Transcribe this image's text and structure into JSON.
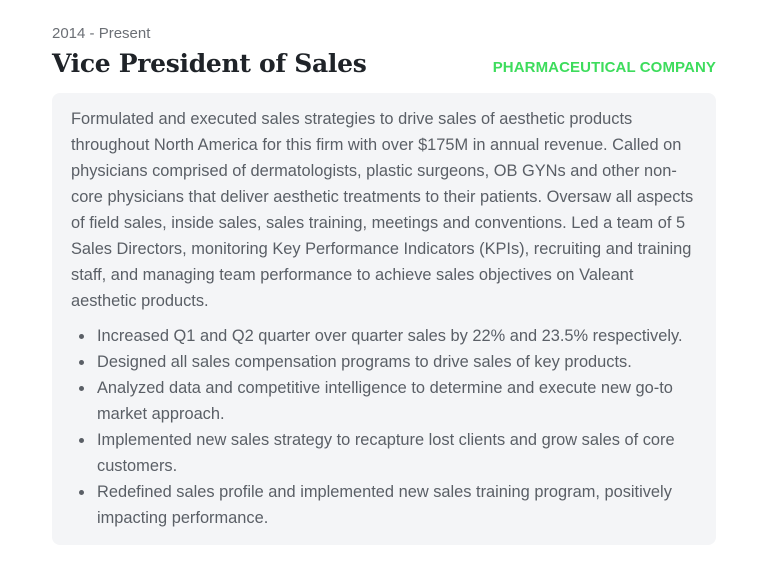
{
  "entry": {
    "date_range": "2014 - Present",
    "job_title": "Vice President of Sales",
    "company": "PHARMACEUTICAL COMPANY",
    "company_color": "#3ddc5c",
    "summary": "Formulated and executed sales strategies to drive sales of aesthetic products throughout North America for this firm with over $175M in annual revenue. Called on physicians comprised of dermatologists, plastic surgeons, OB GYNs and other non-core physicians that deliver aesthetic treatments to their patients. Oversaw all aspects of field sales, inside sales, sales training, meetings and conventions. Led a team of 5 Sales Directors, monitoring Key Performance Indicators (KPIs), recruiting and training staff, and managing team performance to achieve sales objectives on Valeant aesthetic products.",
    "achievements": [
      "Increased Q1 and Q2 quarter over quarter sales by 22% and 23.5% respectively.",
      "Designed all sales compensation programs to drive sales of key products.",
      "Analyzed data and competitive intelligence to determine and execute new go-to market approach.",
      "Implemented new sales strategy to recapture lost clients and grow sales of core customers.",
      "Redefined sales profile and implemented new sales training program, positively impacting performance."
    ]
  }
}
